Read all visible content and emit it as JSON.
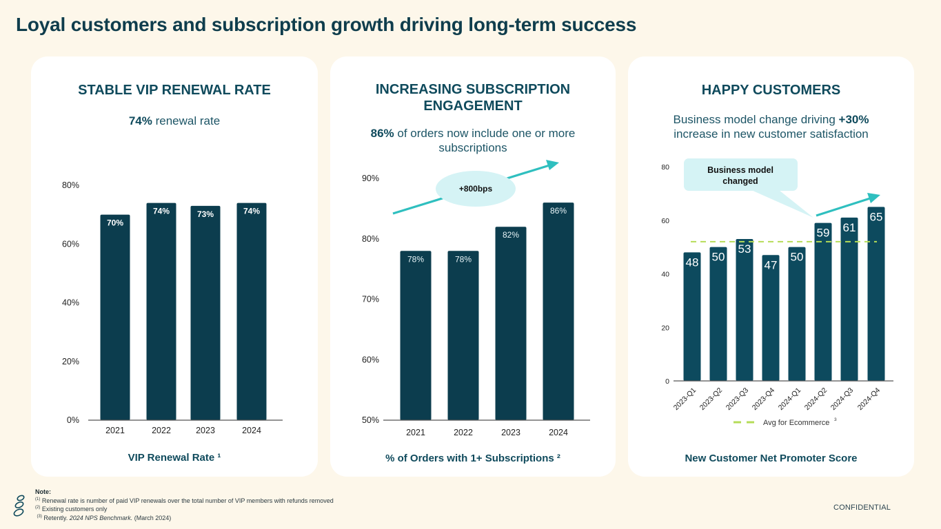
{
  "page": {
    "title": "Loyal customers and subscription growth driving long-term success",
    "confidential": "CONFIDENTIAL"
  },
  "colors": {
    "background": "#fdf7ea",
    "card": "#ffffff",
    "bar": "#0c3d4e",
    "bar_nps": "#0d4a5e",
    "heading": "#0f4a5c",
    "arrow": "#2fbfbf",
    "callout": "#d5f3f5",
    "benchmark_line": "#b5dc58"
  },
  "cards": [
    {
      "title": "STABLE VIP RENEWAL RATE",
      "subtitle_bold": "74%",
      "subtitle_rest": " renewal rate",
      "footer": "VIP Renewal Rate ¹"
    },
    {
      "title_line1": "INCREASING SUBSCRIPTION",
      "title_line2": "ENGAGEMENT",
      "subtitle_bold": "86%",
      "subtitle_rest": " of orders now include one or more",
      "subtitle_line2": "subscriptions",
      "annotation": "+800bps",
      "footer": "% of Orders with 1+ Subscriptions ²"
    },
    {
      "title": "HAPPY CUSTOMERS",
      "subtitle_line1_rest": "Business model change driving ",
      "subtitle_bold": "+30%",
      "subtitle_line2": "increase in new customer satisfaction",
      "callout_line1": "Business model",
      "callout_line2": "changed",
      "footer": "New Customer Net Promoter Score"
    }
  ],
  "notes": {
    "title": "Note:",
    "items": [
      {
        "marker": "(1)",
        "text": "Renewal rate is number of paid VIP renewals over the total number of VIP members with refunds removed",
        "italic": ""
      },
      {
        "marker": "(2)",
        "text": "Existing customers only",
        "italic": ""
      },
      {
        "marker": "(3)",
        "text": "Retently. ",
        "italic": "2024 NPS Benchmark.",
        "after": " (March 2024)"
      }
    ]
  },
  "chart_data": [
    {
      "type": "bar",
      "title": "STABLE VIP RENEWAL RATE",
      "xlabel": "VIP Renewal Rate ¹",
      "ylabel": "",
      "categories": [
        "2021",
        "2022",
        "2023",
        "2024"
      ],
      "values": [
        70,
        74,
        73,
        74
      ],
      "data_labels": [
        "70%",
        "74%",
        "73%",
        "74%"
      ],
      "ylim": [
        0,
        80
      ],
      "yticks": [
        0,
        20,
        40,
        60,
        80
      ],
      "ytick_labels": [
        "0%",
        "20%",
        "40%",
        "60%",
        "80%"
      ],
      "grid": false,
      "legend": "none"
    },
    {
      "type": "bar",
      "title": "INCREASING SUBSCRIPTION ENGAGEMENT",
      "xlabel": "% of Orders with 1+ Subscriptions ²",
      "ylabel": "",
      "categories": [
        "2021",
        "2022",
        "2023",
        "2024"
      ],
      "values": [
        78,
        78,
        82,
        86
      ],
      "data_labels": [
        "78%",
        "78%",
        "82%",
        "86%"
      ],
      "ylim": [
        50,
        90
      ],
      "yticks": [
        50,
        60,
        70,
        80,
        90
      ],
      "ytick_labels": [
        "50%",
        "60%",
        "70%",
        "80%",
        "90%"
      ],
      "annotations": [
        "+800bps"
      ],
      "grid": false,
      "legend": "none"
    },
    {
      "type": "bar",
      "title": "HAPPY CUSTOMERS",
      "xlabel": "New Customer Net Promoter Score",
      "ylabel": "",
      "categories": [
        "2023-Q1",
        "2023-Q2",
        "2023-Q3",
        "2023-Q4",
        "2024-Q1",
        "2024-Q2",
        "2024-Q3",
        "2024-Q4"
      ],
      "values": [
        48,
        50,
        53,
        47,
        50,
        59,
        61,
        65
      ],
      "data_labels": [
        "48",
        "50",
        "53",
        "47",
        "50",
        "59",
        "61",
        "65"
      ],
      "ylim": [
        0,
        80
      ],
      "yticks": [
        0,
        20,
        40,
        60,
        80
      ],
      "ytick_labels": [
        "0",
        "20",
        "40",
        "60",
        "80"
      ],
      "reference_lines": [
        {
          "name": "Avg for Ecommerce",
          "superscript": "3",
          "value": 52,
          "style": "dashed"
        }
      ],
      "annotations": [
        "Business model changed"
      ],
      "grid": false,
      "legend": "bottom"
    }
  ]
}
